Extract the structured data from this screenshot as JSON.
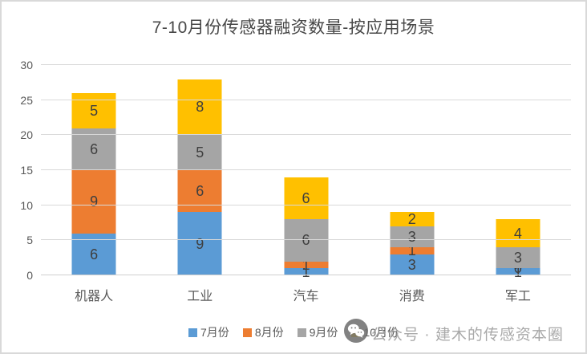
{
  "chart_data": {
    "type": "bar",
    "subtype": "stacked-vertical",
    "title": "7-10月份传感器融资数量-按应用场景",
    "categories": [
      "机器人",
      "工业",
      "汽车",
      "消费",
      "军工"
    ],
    "series": [
      {
        "name": "7月份",
        "color": "#5B9BD5",
        "values": [
          6,
          9,
          1,
          3,
          1
        ]
      },
      {
        "name": "8月份",
        "color": "#ED7D31",
        "values": [
          9,
          6,
          1,
          1,
          0
        ]
      },
      {
        "name": "9月份",
        "color": "#A5A5A5",
        "values": [
          6,
          5,
          6,
          3,
          3
        ]
      },
      {
        "name": "10月份",
        "color": "#FFC000",
        "values": [
          5,
          8,
          6,
          2,
          4
        ]
      }
    ],
    "stack_totals": [
      26,
      28,
      14,
      9,
      8
    ],
    "xlabel": "",
    "ylabel": "",
    "ylim": [
      0,
      30
    ],
    "y_ticks": [
      0,
      5,
      10,
      15,
      20,
      25,
      30
    ],
    "grid": true,
    "legend_position": "bottom",
    "data_labels": true
  },
  "watermark": {
    "icon": "wechat-icon",
    "text": "公众号 · 建木的传感资本圈"
  }
}
